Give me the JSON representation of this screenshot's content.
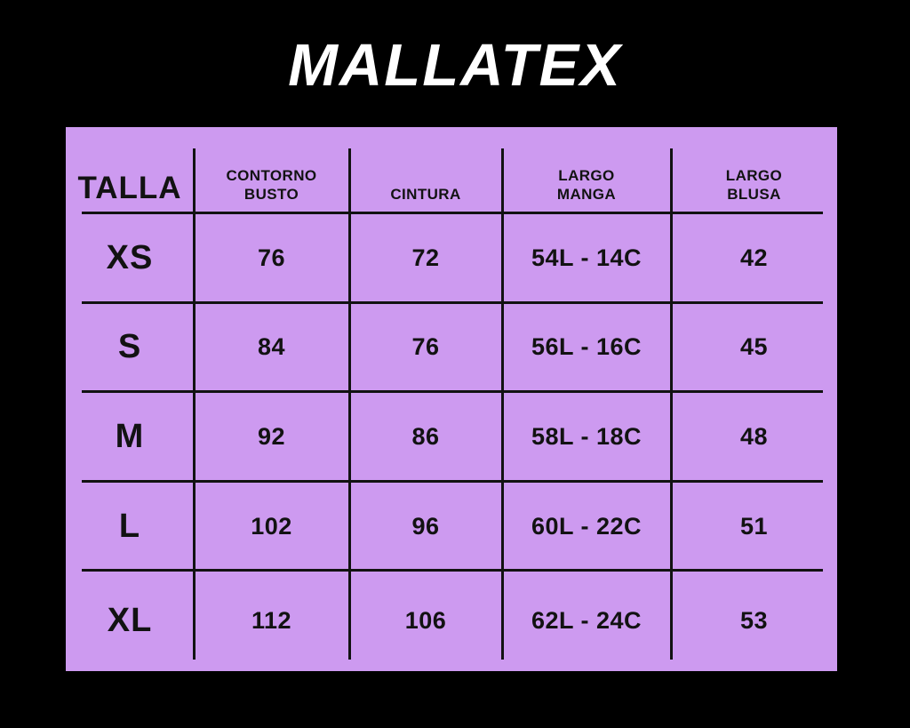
{
  "chart_data": {
    "type": "table",
    "title": "MALLATEX",
    "columns": [
      "TALLA",
      "CONTORNO BUSTO",
      "CINTURA",
      "LARGO MANGA",
      "LARGO BLUSA"
    ],
    "rows": [
      [
        "XS",
        "76",
        "72",
        "54L - 14C",
        "42"
      ],
      [
        "S",
        "84",
        "76",
        "56L - 16C",
        "45"
      ],
      [
        "M",
        "92",
        "86",
        "58L - 18C",
        "48"
      ],
      [
        "L",
        "102",
        "96",
        "60L - 22C",
        "51"
      ],
      [
        "XL",
        "112",
        "106",
        "62L - 24C",
        "53"
      ]
    ]
  },
  "header_display": {
    "talla": [
      "TALLA"
    ],
    "busto": [
      "CONTORNO",
      "BUSTO"
    ],
    "cintura": [
      "CINTURA"
    ],
    "manga": [
      "LARGO",
      "MANGA"
    ],
    "blusa": [
      "LARGO",
      "BLUSA"
    ]
  },
  "colors": {
    "background": "#000000",
    "panel": "#cd9af0",
    "ink": "#121212",
    "title_text": "#ffffff"
  }
}
